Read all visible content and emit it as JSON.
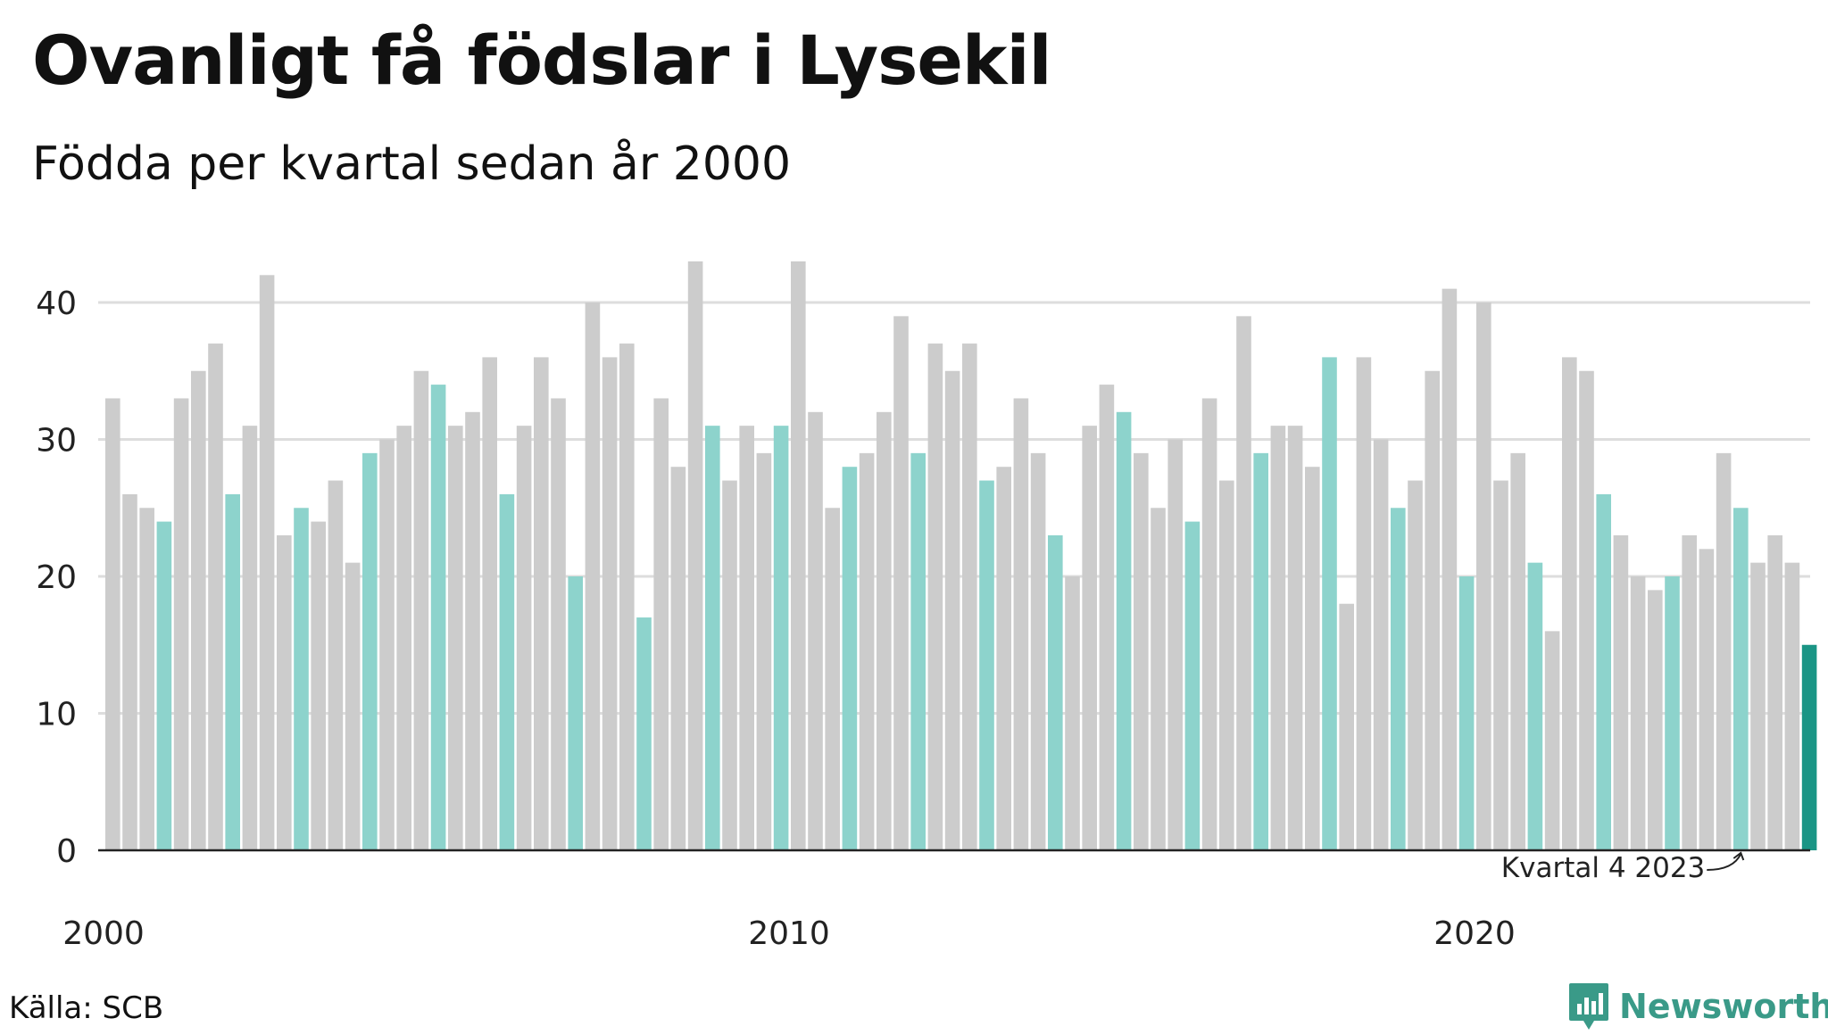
{
  "header": {
    "title": "Ovanligt få födslar i Lysekil",
    "subtitle": "Födda per kvartal sedan år 2000"
  },
  "footer": {
    "source": "Källa: SCB",
    "brand": "Newsworthy",
    "brand_icon": "bar-chart-logo-icon"
  },
  "colors": {
    "default_bar": "#cccccc",
    "q4_bar": "#8dd3cc",
    "latest_bar": "#1a9585",
    "grid": "#dddddd",
    "axis": "#222222",
    "brand": "#3a9a88"
  },
  "chart_data": {
    "type": "bar",
    "title": "Ovanligt få födslar i Lysekil",
    "subtitle": "Födda per kvartal sedan år 2000",
    "xlabel": "",
    "ylabel": "",
    "ylim": [
      0,
      45
    ],
    "yticks": [
      0,
      10,
      20,
      30,
      40
    ],
    "xtick_labels": [
      "2000",
      "2010",
      "2020"
    ],
    "grid": true,
    "start": {
      "year": 2000,
      "quarter": 1
    },
    "highlight": "Q4 quarters in teal; latest quarter in dark teal",
    "annotation": {
      "text": "Kvartal 4 2023"
    },
    "values": [
      33,
      26,
      25,
      24,
      33,
      35,
      37,
      26,
      31,
      42,
      23,
      25,
      24,
      27,
      21,
      29,
      30,
      31,
      35,
      34,
      31,
      32,
      36,
      26,
      31,
      36,
      33,
      20,
      40,
      36,
      37,
      17,
      33,
      28,
      43,
      31,
      27,
      31,
      29,
      31,
      43,
      32,
      25,
      28,
      29,
      32,
      39,
      29,
      37,
      35,
      37,
      27,
      28,
      33,
      29,
      23,
      20,
      31,
      34,
      32,
      29,
      25,
      30,
      24,
      33,
      27,
      39,
      29,
      31,
      31,
      28,
      36,
      18,
      36,
      30,
      25,
      27,
      35,
      41,
      20,
      40,
      27,
      29,
      21,
      16,
      36,
      35,
      26,
      23,
      20,
      19,
      20,
      23,
      22,
      29,
      25,
      21,
      23,
      21,
      15
    ]
  }
}
